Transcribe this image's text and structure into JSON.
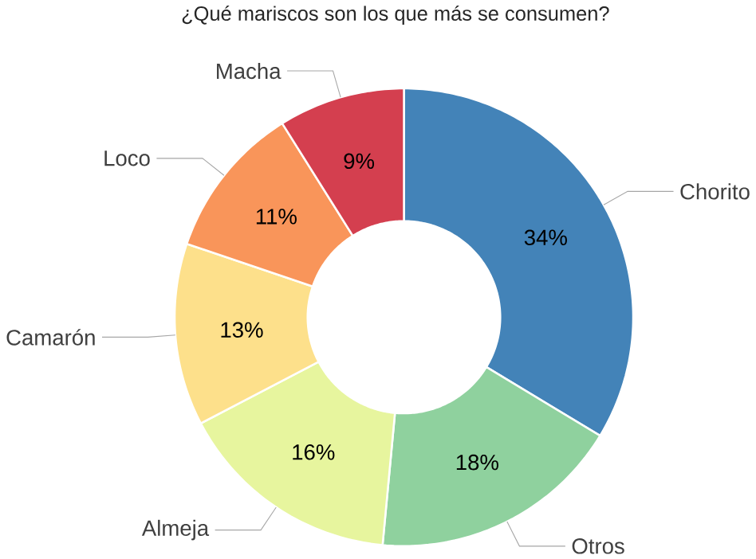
{
  "chart_data": {
    "type": "donut",
    "title": "¿Qué mariscos son los que más se consumen?",
    "categories": [
      "Chorito",
      "Otros",
      "Almeja",
      "Camarón",
      "Loco",
      "Macha"
    ],
    "values": [
      34,
      18,
      16,
      13,
      11,
      9
    ],
    "value_labels": [
      "34%",
      "18%",
      "16%",
      "13%",
      "11%",
      "9%"
    ],
    "colors": [
      "#4383b8",
      "#8fd19e",
      "#e7f59e",
      "#fde08b",
      "#f9955a",
      "#d43f4f"
    ]
  }
}
